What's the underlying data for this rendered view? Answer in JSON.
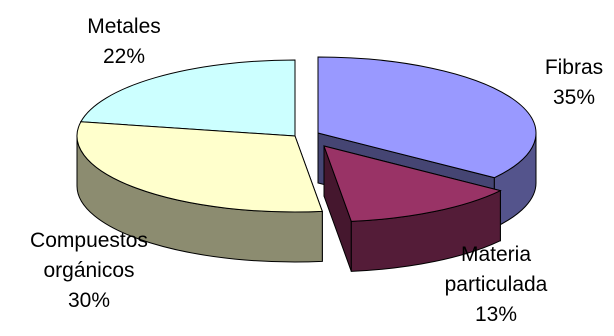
{
  "chart_data": {
    "type": "pie",
    "title": "",
    "slices": [
      {
        "name": "Fibras",
        "value": 35,
        "value_label": "35%",
        "color": "#9999FF"
      },
      {
        "name": "Materia particulada",
        "value": 13,
        "value_label": "13%",
        "color": "#993366"
      },
      {
        "name": "Compuestos orgánicos",
        "value": 30,
        "value_label": "30%",
        "color": "#FFFFCC"
      },
      {
        "name": "Metales",
        "value": 22,
        "value_label": "22%",
        "color": "#CCFFFF"
      }
    ],
    "label_lines": [
      [
        "Fibras",
        "35%"
      ],
      [
        "Materia",
        "particulada",
        "13%"
      ],
      [
        "Compuestos",
        "orgánicos",
        "30%"
      ],
      [
        "Metales",
        "22%"
      ]
    ],
    "legend": "none",
    "style": "3d-exploded"
  }
}
